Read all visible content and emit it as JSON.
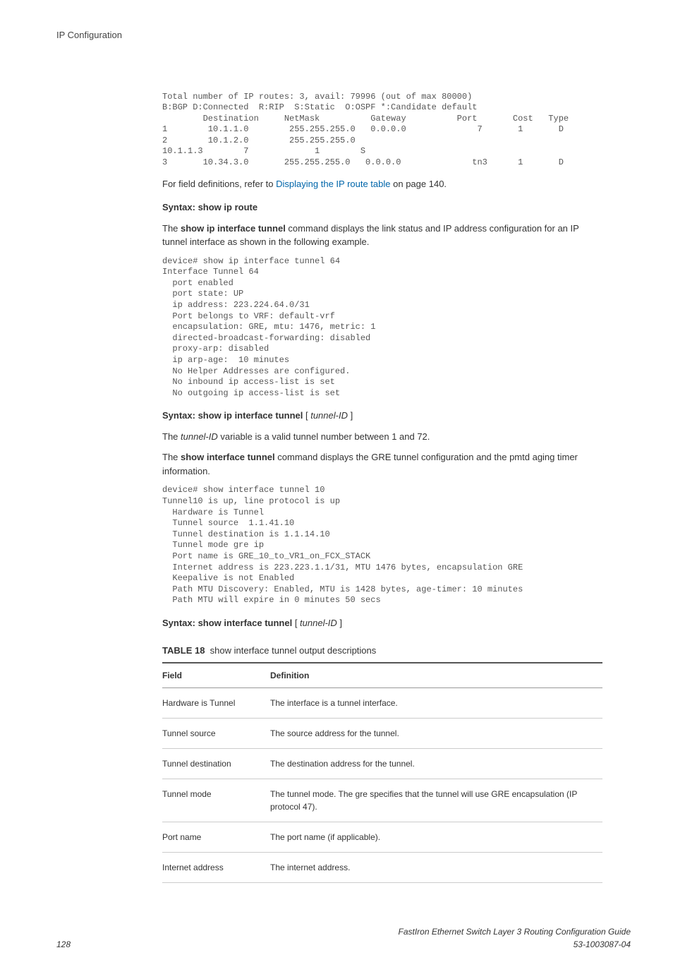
{
  "header": {
    "section": "IP Configuration"
  },
  "code1": "Total number of IP routes: 3, avail: 79996 (out of max 80000)\nB:BGP D:Connected  R:RIP  S:Static  O:OSPF *:Candidate default\n        Destination     NetMask          Gateway          Port       Cost   Type\n1        10.1.1.0        255.255.255.0   0.0.0.0              7       1       D\n2        10.1.2.0        255.255.255.0                                     \n10.1.1.3        7             1        S\n3       10.34.3.0       255.255.255.0   0.0.0.0              tn3      1       D",
  "para1_a": "For field definitions, refer to ",
  "para1_link": "Displaying the IP route table",
  "para1_b": " on page 140.",
  "syntax1": "Syntax: show ip route",
  "para2_a": "The ",
  "para2_b": "show ip interface tunnel",
  "para2_c": " command displays the link status and IP address configuration for an IP tunnel interface as shown in the following example.",
  "code2": "device# show ip interface tunnel 64\nInterface Tunnel 64\n  port enabled\n  port state: UP\n  ip address: 223.224.64.0/31   \n  Port belongs to VRF: default-vrf\n  encapsulation: GRE, mtu: 1476, metric: 1\n  directed-broadcast-forwarding: disabled\n  proxy-arp: disabled\n  ip arp-age:  10 minutes\n  No Helper Addresses are configured.\n  No inbound ip access-list is set\n  No outgoing ip access-list is set",
  "syntax2_a": "Syntax: show ip interface tunnel",
  "syntax2_b": " [ ",
  "syntax2_c": "tunnel-ID",
  "syntax2_d": " ]",
  "para3_a": "The ",
  "para3_b": "tunnel-ID",
  "para3_c": " variable is a valid tunnel number between 1 and 72.",
  "para4_a": "The ",
  "para4_b": "show interface tunnel",
  "para4_c": " command displays the GRE tunnel configuration and the pmtd aging timer information.",
  "code3": "device# show interface tunnel 10\nTunnel10 is up, line protocol is up \n  Hardware is Tunnel\n  Tunnel source  1.1.41.10\n  Tunnel destination is 1.1.14.10\n  Tunnel mode gre ip\n  Port name is GRE_10_to_VR1_on_FCX_STACK\n  Internet address is 223.223.1.1/31, MTU 1476 bytes, encapsulation GRE\n  Keepalive is not Enabled\n  Path MTU Discovery: Enabled, MTU is 1428 bytes, age-timer: 10 minutes \n  Path MTU will expire in 0 minutes 50 secs",
  "syntax3_a": "Syntax: show interface tunnel",
  "syntax3_b": " [ ",
  "syntax3_c": "tunnel-ID",
  "syntax3_d": " ]",
  "table": {
    "caption_label": "TABLE 18",
    "caption_text": "show interface tunnel output descriptions",
    "headers": {
      "col1": "Field",
      "col2": "Definition"
    },
    "rows": [
      {
        "field": "Hardware is Tunnel",
        "def": "The interface is a tunnel interface."
      },
      {
        "field": "Tunnel source",
        "def": "The source address for the tunnel."
      },
      {
        "field": "Tunnel destination",
        "def": "The destination address for the tunnel."
      },
      {
        "field": "Tunnel mode",
        "def": "The tunnel mode. The gre specifies that the tunnel will use GRE encapsulation (IP protocol 47)."
      },
      {
        "field": "Port name",
        "def": "The port name (if applicable)."
      },
      {
        "field": "Internet address",
        "def": "The internet address."
      }
    ]
  },
  "footer": {
    "page": "128",
    "title": "FastIron Ethernet Switch Layer 3 Routing Configuration Guide",
    "docnum": "53-1003087-04"
  }
}
